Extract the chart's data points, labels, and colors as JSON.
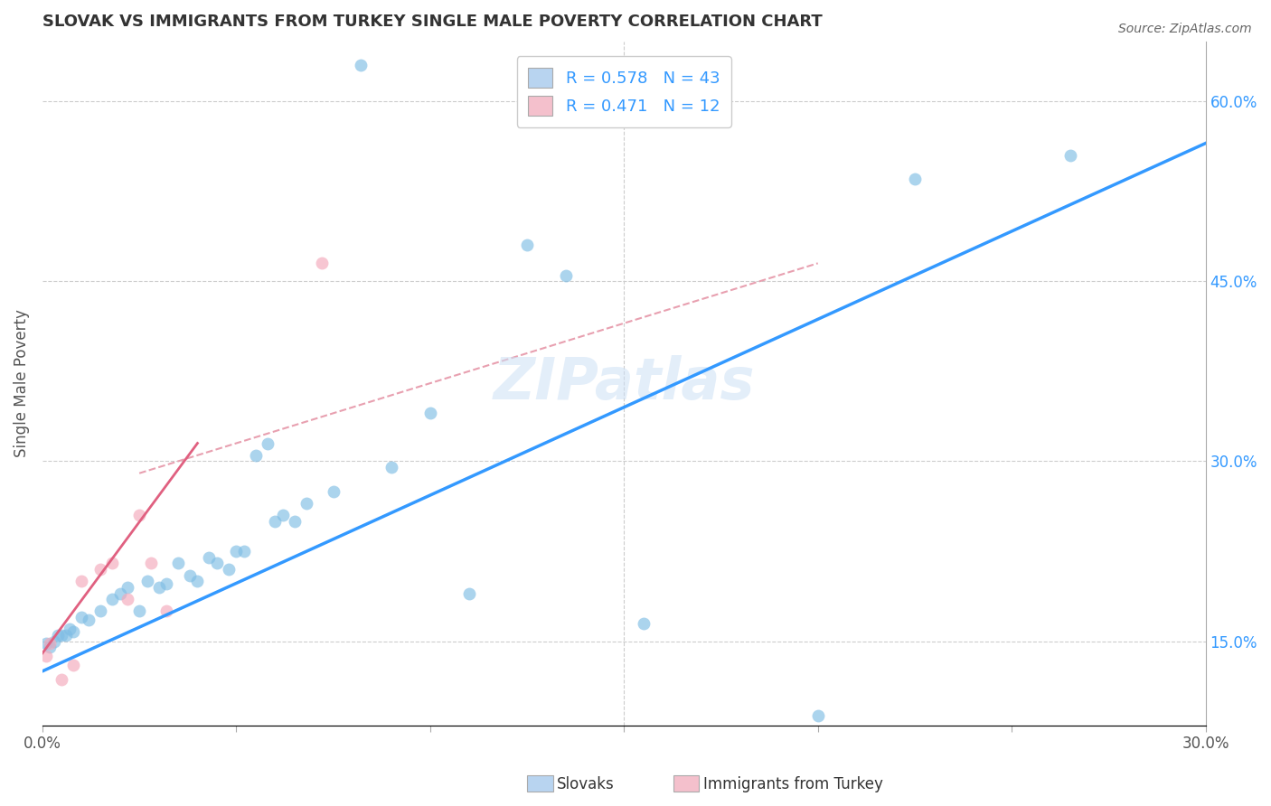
{
  "title": "SLOVAK VS IMMIGRANTS FROM TURKEY SINGLE MALE POVERTY CORRELATION CHART",
  "source": "Source: ZipAtlas.com",
  "xlabel_label": "Slovaks",
  "ylabel_label": "Single Male Poverty",
  "xlabel2_label": "Immigrants from Turkey",
  "xlim": [
    0.0,
    0.3
  ],
  "ylim": [
    0.08,
    0.65
  ],
  "x_ticks": [
    0.0,
    0.05,
    0.1,
    0.15,
    0.2,
    0.25,
    0.3
  ],
  "y_ticks_right": [
    0.15,
    0.3,
    0.45,
    0.6
  ],
  "y_tick_labels_right": [
    "15.0%",
    "30.0%",
    "45.0%",
    "60.0%"
  ],
  "grid_color": "#cccccc",
  "watermark": "ZIPatlas",
  "blue_color": "#7fbde4",
  "pink_color": "#f4a8ba",
  "blue_line_color": "#3399ff",
  "pink_line_color": "#e06080",
  "dashed_line_color": "#e8a0b0",
  "legend_box_blue": "#b8d4f0",
  "legend_box_pink": "#f4c0cc",
  "R_blue": 0.578,
  "N_blue": 43,
  "R_pink": 0.471,
  "N_pink": 12,
  "blue_scatter_x": [
    0.001,
    0.002,
    0.003,
    0.004,
    0.005,
    0.006,
    0.007,
    0.008,
    0.01,
    0.012,
    0.015,
    0.018,
    0.02,
    0.022,
    0.025,
    0.027,
    0.03,
    0.032,
    0.035,
    0.038,
    0.04,
    0.043,
    0.045,
    0.048,
    0.05,
    0.052,
    0.055,
    0.058,
    0.06,
    0.062,
    0.065,
    0.068,
    0.075,
    0.082,
    0.09,
    0.1,
    0.11,
    0.125,
    0.135,
    0.155,
    0.2,
    0.225,
    0.265
  ],
  "blue_scatter_y": [
    0.148,
    0.145,
    0.15,
    0.155,
    0.155,
    0.155,
    0.16,
    0.158,
    0.17,
    0.168,
    0.175,
    0.185,
    0.19,
    0.195,
    0.175,
    0.2,
    0.195,
    0.198,
    0.215,
    0.205,
    0.2,
    0.22,
    0.215,
    0.21,
    0.225,
    0.225,
    0.305,
    0.315,
    0.25,
    0.255,
    0.25,
    0.265,
    0.275,
    0.63,
    0.295,
    0.34,
    0.19,
    0.48,
    0.455,
    0.165,
    0.088,
    0.535,
    0.555
  ],
  "pink_scatter_x": [
    0.001,
    0.002,
    0.005,
    0.008,
    0.01,
    0.015,
    0.018,
    0.022,
    0.025,
    0.028,
    0.032,
    0.072
  ],
  "pink_scatter_y": [
    0.138,
    0.148,
    0.118,
    0.13,
    0.2,
    0.21,
    0.215,
    0.185,
    0.255,
    0.215,
    0.175,
    0.465
  ],
  "blue_line_x": [
    0.0,
    0.3
  ],
  "blue_line_y": [
    0.125,
    0.565
  ],
  "pink_line_x": [
    0.0,
    0.04
  ],
  "pink_line_y": [
    0.14,
    0.315
  ],
  "dashed_line_x": [
    0.025,
    0.2
  ],
  "dashed_line_y": [
    0.29,
    0.465
  ]
}
